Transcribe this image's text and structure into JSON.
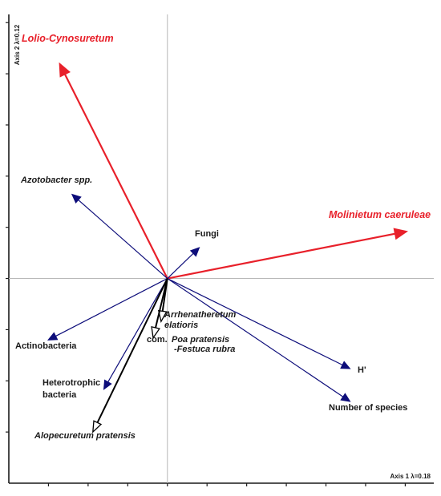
{
  "chart_data": {
    "type": "scatter",
    "subtype": "ordination-biplot",
    "x_axis_label": "Axis 1 λ=0.18",
    "y_axis_label": "Axis 2 λ=0.12",
    "xlim": [
      -1.0,
      1.68
    ],
    "ylim": [
      -1.0,
      1.29
    ],
    "grid": false,
    "legend": "none",
    "colors": {
      "community_vector": "#e8202a",
      "variable_vector": "#0d0d7a",
      "passive_vector": "#000000",
      "zero_line": "#b8b8b8"
    },
    "series": [
      {
        "name": "Communities",
        "style": "red-filled-arrow",
        "points": [
          {
            "label": "Lolio-Cynosuretum",
            "x": -0.68,
            "y": 1.05
          },
          {
            "label": "Molinietum caeruleae",
            "x": 1.51,
            "y": 0.23
          }
        ]
      },
      {
        "name": "Microbial and diversity variables",
        "style": "navy-filled-arrow",
        "points": [
          {
            "label": "Azotobacter spp.",
            "x": -0.6,
            "y": 0.41
          },
          {
            "label": "Fungi",
            "x": 0.2,
            "y": 0.15
          },
          {
            "label": "Actinobacteria",
            "x": -0.75,
            "y": -0.3
          },
          {
            "label": "Heterotrophic bacteria",
            "x": -0.4,
            "y": -0.54
          },
          {
            "label": "H'",
            "x": 1.15,
            "y": -0.44
          },
          {
            "label": "Number of species",
            "x": 1.15,
            "y": -0.6
          }
        ]
      },
      {
        "name": "Supplementary communities",
        "style": "black-hollow-arrow",
        "points": [
          {
            "label": "Arrhenatheretum elatioris",
            "x": -0.04,
            "y": -0.21
          },
          {
            "label": "com. Poa pratensis -Festuca rubra",
            "x": -0.09,
            "y": -0.29
          },
          {
            "label": "Alopecuretum pratensis",
            "x": -0.47,
            "y": -0.75
          }
        ]
      }
    ]
  },
  "labels": {
    "lolio": "Lolio-Cynosuretum",
    "molinietum": "Molinietum caeruleae",
    "azotobacter": "Azotobacter spp.",
    "fungi": "Fungi",
    "actino": "Actinobacteria",
    "hetero_1": "Heterotrophic",
    "hetero_2": "bacteria",
    "h_prime": "H'",
    "nspecies": "Number of species",
    "arrhen_1": "Arrhenatheretum",
    "arrhen_2": "elatioris",
    "poa_1": "com.",
    "poa_2": "Poa pratensis",
    "poa_3": "-Festuca rubra",
    "alopec": "Alopecuretum pratensis"
  }
}
